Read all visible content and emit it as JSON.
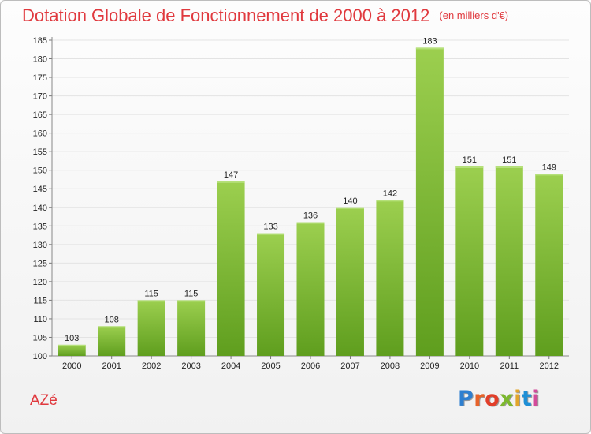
{
  "title": "Dotation Globale de Fonctionnement de 2000 à 2012",
  "unit": "(en milliers d'€)",
  "place": "AZé",
  "logo": {
    "letters": [
      "P",
      "r",
      "o",
      "x",
      "i",
      "t",
      "i"
    ],
    "colors": [
      "#2e7fd0",
      "#e7632a",
      "#e23f2a",
      "#7cb82e",
      "#e2a52a",
      "#1e8fd6",
      "#d34a9a"
    ]
  },
  "colors": {
    "title": "#e0393e",
    "bar_top": "#9ccf4f",
    "bar_bottom": "#5f9e1e",
    "grid": "#e3e3e3"
  },
  "chart_data": {
    "type": "bar",
    "categories": [
      "2000",
      "2001",
      "2002",
      "2003",
      "2004",
      "2005",
      "2006",
      "2007",
      "2008",
      "2009",
      "2010",
      "2011",
      "2012"
    ],
    "values": [
      103,
      108,
      115,
      115,
      147,
      133,
      136,
      140,
      142,
      183,
      151,
      151,
      149
    ],
    "title": "Dotation Globale de Fonctionnement de 2000 à 2012",
    "subtitle": "(en milliers d'€)",
    "xlabel": "",
    "ylabel": "",
    "ylim": [
      100,
      185
    ],
    "yticks": [
      100,
      105,
      110,
      115,
      120,
      125,
      130,
      135,
      140,
      145,
      150,
      155,
      160,
      165,
      170,
      175,
      180,
      185
    ],
    "grid": true,
    "legend": "none"
  }
}
